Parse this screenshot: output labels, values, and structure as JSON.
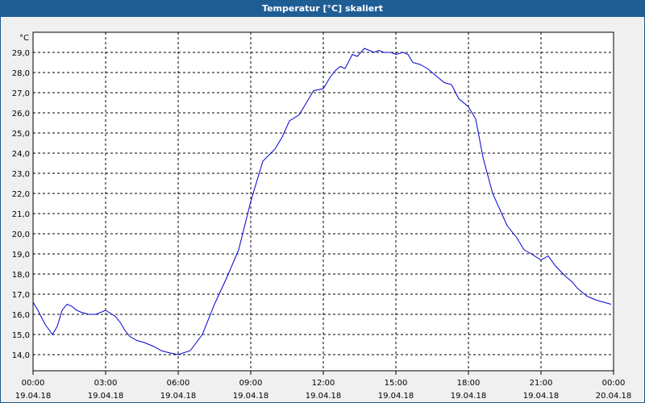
{
  "window": {
    "title": "Temperatur [°C] skaliert"
  },
  "chart_data": {
    "type": "line",
    "title": "Temperatur [°C] skaliert",
    "yunit": "°C",
    "ylim": [
      13.2,
      30.0
    ],
    "yticks": [
      14.0,
      15.0,
      16.0,
      17.0,
      18.0,
      19.0,
      20.0,
      21.0,
      22.0,
      23.0,
      24.0,
      25.0,
      26.0,
      27.0,
      28.0,
      29.0
    ],
    "ytick_labels": [
      "14,0",
      "15,0",
      "16,0",
      "17,0",
      "18,0",
      "19,0",
      "20,0",
      "21,0",
      "22,0",
      "23,0",
      "24,0",
      "25,0",
      "26,0",
      "27,0",
      "28,0",
      "29,0"
    ],
    "xlim": [
      0,
      24
    ],
    "xticks": [
      {
        "time": "00:00",
        "date": "19.04.18"
      },
      {
        "time": "03:00",
        "date": "19.04.18"
      },
      {
        "time": "06:00",
        "date": "19.04.18"
      },
      {
        "time": "09:00",
        "date": "19.04.18"
      },
      {
        "time": "12:00",
        "date": "19.04.18"
      },
      {
        "time": "15:00",
        "date": "19.04.18"
      },
      {
        "time": "18:00",
        "date": "19.04.18"
      },
      {
        "time": "21:00",
        "date": "19.04.18"
      },
      {
        "time": "00:00",
        "date": "20.04.18"
      }
    ],
    "grid": true,
    "line_color": "#0000cc",
    "series": [
      {
        "x": [
          0.0,
          0.2,
          0.5,
          0.8,
          1.0,
          1.2,
          1.4,
          1.6,
          1.8,
          2.0,
          2.3,
          2.6,
          3.0,
          3.4,
          3.6,
          3.8,
          4.0,
          4.3,
          4.6,
          5.0,
          5.3,
          5.6,
          6.0,
          6.5,
          7.0,
          7.5,
          8.0,
          8.5,
          9.0,
          9.5,
          10.0,
          10.3,
          10.6,
          11.0,
          11.3,
          11.6,
          12.0,
          12.3,
          12.5,
          12.7,
          12.9,
          13.2,
          13.4,
          13.7,
          13.9,
          14.1,
          14.3,
          14.5,
          14.8,
          15.0,
          15.3,
          15.5,
          15.7,
          16.0,
          16.3,
          16.6,
          16.8,
          17.0,
          17.3,
          17.6,
          18.0,
          18.3,
          18.6,
          19.0,
          19.3,
          19.6,
          20.0,
          20.3,
          20.6,
          21.0,
          21.3,
          21.6,
          22.0,
          22.3,
          22.5,
          22.7,
          22.9,
          23.1,
          23.3,
          23.6,
          23.9
        ],
        "y": [
          16.6,
          16.2,
          15.5,
          15.0,
          15.4,
          16.2,
          16.5,
          16.4,
          16.2,
          16.1,
          16.0,
          16.0,
          16.2,
          15.9,
          15.6,
          15.2,
          14.9,
          14.7,
          14.6,
          14.4,
          14.2,
          14.1,
          14.0,
          14.2,
          15.0,
          16.5,
          17.8,
          19.2,
          21.6,
          23.6,
          24.2,
          24.8,
          25.6,
          25.9,
          26.5,
          27.1,
          27.2,
          27.8,
          28.1,
          28.3,
          28.2,
          28.9,
          28.8,
          29.2,
          29.1,
          29.0,
          29.1,
          29.0,
          29.0,
          28.9,
          29.0,
          28.9,
          28.5,
          28.4,
          28.2,
          27.9,
          27.7,
          27.5,
          27.4,
          26.7,
          26.3,
          25.7,
          23.8,
          22.0,
          21.2,
          20.4,
          19.8,
          19.2,
          19.0,
          18.7,
          18.9,
          18.4,
          17.9,
          17.6,
          17.3,
          17.1,
          16.9,
          16.8,
          16.7,
          16.6,
          16.5
        ]
      }
    ]
  }
}
